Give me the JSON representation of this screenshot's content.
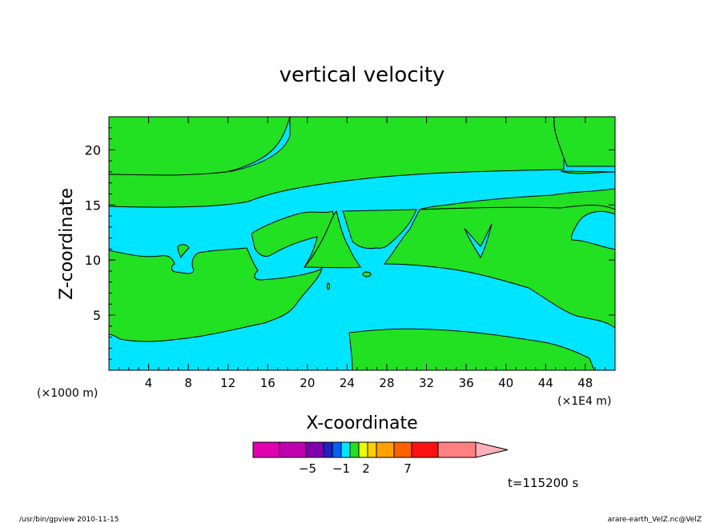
{
  "chart_data": {
    "type": "heatmap",
    "title": "vertical velocity",
    "xlabel": "X-coordinate",
    "ylabel": "Z-coordinate",
    "x_unit_note": "(×1000 m)",
    "x_scale_note": "(×1E4 m)",
    "xlim": [
      0,
      51
    ],
    "ylim": [
      0,
      23
    ],
    "x_ticks": [
      "4",
      "8",
      "12",
      "16",
      "20",
      "24",
      "28",
      "32",
      "36",
      "40",
      "44",
      "48"
    ],
    "y_ticks": [
      "5",
      "10",
      "15",
      "20"
    ],
    "regions": [
      {
        "level": "negative",
        "color": "#00e5ff"
      },
      {
        "level": "positive",
        "color": "#22e022"
      }
    ],
    "colorbar": {
      "colors": [
        "#e000b0",
        "#c000b0",
        "#8000b0",
        "#2020c0",
        "#0060ff",
        "#00e5ff",
        "#22e022",
        "#e8ff00",
        "#ffd000",
        "#ffa000",
        "#ff6000",
        "#ff1010",
        "#ff8080",
        "#ffb0b8"
      ],
      "labels": [
        "-5",
        "-1",
        "2",
        "7"
      ]
    },
    "time_label": "t=115200 s"
  },
  "footer": {
    "left": "/usr/bin/gpview  2010-11-15",
    "right": "arare-earth_VelZ.nc@VelZ"
  }
}
